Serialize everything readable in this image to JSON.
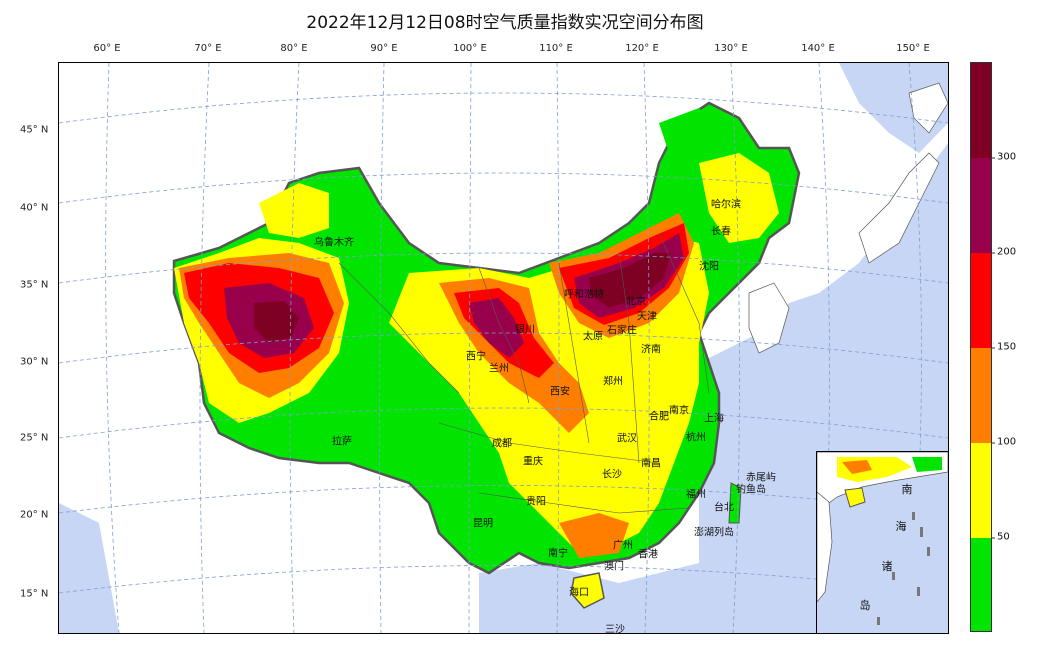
{
  "title": "2022年12月12日08时空气质量指数实况空间分布图",
  "longitude_labels": [
    "60° E",
    "70° E",
    "80° E",
    "90° E",
    "100° E",
    "110° E",
    "120° E",
    "130° E",
    "140° E",
    "150° E"
  ],
  "latitude_labels": [
    "45° N",
    "40° N",
    "35° N",
    "30° N",
    "25° N",
    "20° N",
    "15° N"
  ],
  "cities": [
    "乌鲁木齐",
    "哈尔滨",
    "长春",
    "沈阳",
    "呼和浩特",
    "北京",
    "天津",
    "石家庄",
    "太原",
    "济南",
    "银川",
    "西宁",
    "兰州",
    "郑州",
    "西安",
    "合肥",
    "南京",
    "上海",
    "杭州",
    "拉萨",
    "成都",
    "武汉",
    "重庆",
    "长沙",
    "南昌",
    "贵阳",
    "福州",
    "台北",
    "昆明",
    "南宁",
    "广州",
    "香港",
    "澳门",
    "海口",
    "澎湖列岛",
    "赤尾屿",
    "钓鱼岛",
    "三沙"
  ],
  "inset_labels": [
    "南",
    "海",
    "诸",
    "岛"
  ],
  "legend": {
    "ticks": [
      "50",
      "100",
      "150",
      "200",
      "300"
    ],
    "colors": {
      "0-50": "#00e400",
      "51-100": "#ffff00",
      "101-150": "#ff7e00",
      "151-200": "#ff0000",
      "201-300": "#99004c",
      "300+": "#7e0023"
    }
  },
  "colors": {
    "ocean": "#c8d6f5",
    "gridline": "#7f9fcf",
    "border": "#555555"
  }
}
